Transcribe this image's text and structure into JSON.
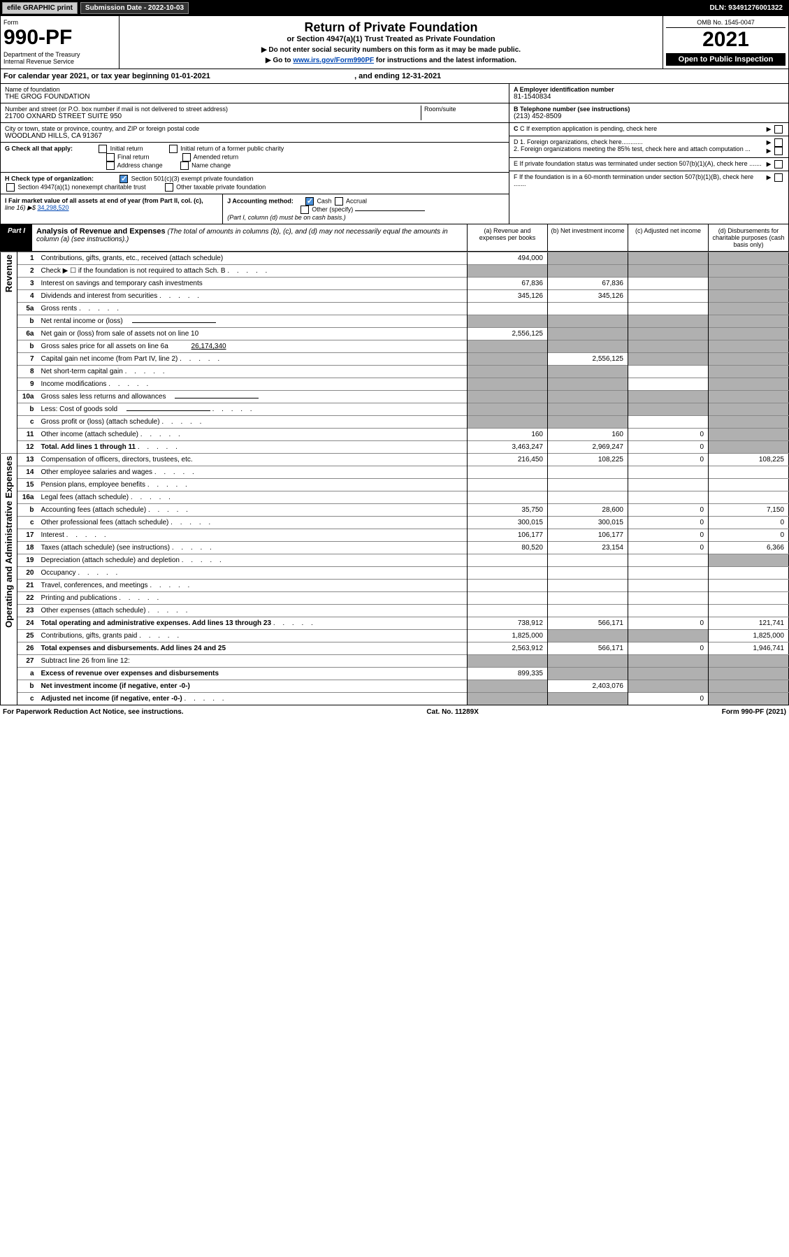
{
  "topbar": {
    "efile": "efile GRAPHIC print",
    "submission": "Submission Date - 2022-10-03",
    "dln": "DLN: 93491276001322"
  },
  "header": {
    "form": "Form",
    "form_num": "990-PF",
    "dept": "Department of the Treasury\nInternal Revenue Service",
    "title": "Return of Private Foundation",
    "subtitle": "or Section 4947(a)(1) Trust Treated as Private Foundation",
    "note1": "▶ Do not enter social security numbers on this form as it may be made public.",
    "note2": "▶ Go to ",
    "link": "www.irs.gov/Form990PF",
    "note2b": " for instructions and the latest information.",
    "omb": "OMB No. 1545-0047",
    "year": "2021",
    "open": "Open to Public Inspection"
  },
  "calyear": {
    "text1": "For calendar year 2021, or tax year beginning ",
    "begin": "01-01-2021",
    "text2": " , and ending ",
    "end": "12-31-2021"
  },
  "info": {
    "name_label": "Name of foundation",
    "name": "THE GROG FOUNDATION",
    "addr_label": "Number and street (or P.O. box number if mail is not delivered to street address)",
    "addr": "21700 OXNARD STREET SUITE 950",
    "room_label": "Room/suite",
    "city_label": "City or town, state or province, country, and ZIP or foreign postal code",
    "city": "WOODLAND HILLS, CA  91367",
    "ein_label": "A Employer identification number",
    "ein": "81-1540834",
    "phone_label": "B Telephone number (see instructions)",
    "phone": "(213) 452-8509",
    "c_label": "C If exemption application is pending, check here",
    "d1": "D 1. Foreign organizations, check here............",
    "d2": "2. Foreign organizations meeting the 85% test, check here and attach computation ...",
    "e_label": "E If private foundation status was terminated under section 507(b)(1)(A), check here .......",
    "f_label": "F If the foundation is in a 60-month termination under section 507(b)(1)(B), check here ......."
  },
  "checks": {
    "g_label": "G Check all that apply:",
    "initial": "Initial return",
    "initial_former": "Initial return of a former public charity",
    "final": "Final return",
    "amended": "Amended return",
    "address": "Address change",
    "name_change": "Name change",
    "h_label": "H Check type of organization:",
    "h1": "Section 501(c)(3) exempt private foundation",
    "h2": "Section 4947(a)(1) nonexempt charitable trust",
    "h3": "Other taxable private foundation",
    "i_label": "I Fair market value of all assets at end of year (from Part II, col. (c),",
    "i_line": "line 16) ▶$ ",
    "i_val": "34,298,520",
    "j_label": "J Accounting method:",
    "cash": "Cash",
    "accrual": "Accrual",
    "other": "Other (specify)",
    "j_note": "(Part I, column (d) must be on cash basis.)"
  },
  "part1": {
    "tab": "Part I",
    "title": "Analysis of Revenue and Expenses",
    "note": "(The total of amounts in columns (b), (c), and (d) may not necessarily equal the amounts in column (a) (see instructions).)",
    "col_a": "(a) Revenue and expenses per books",
    "col_b": "(b) Net investment income",
    "col_c": "(c) Adjusted net income",
    "col_d": "(d) Disbursements for charitable purposes (cash basis only)"
  },
  "sidelabels": {
    "revenue": "Revenue",
    "expenses": "Operating and Administrative Expenses"
  },
  "rows": [
    {
      "n": "1",
      "d": "Contributions, gifts, grants, etc., received (attach schedule)",
      "a": "494,000",
      "bg": true,
      "cg": true,
      "dg": true
    },
    {
      "n": "2",
      "d": "Check ▶ ☐ if the foundation is not required to attach Sch. B",
      "ag": true,
      "bg": true,
      "cg": true,
      "dg": true,
      "dots": true
    },
    {
      "n": "3",
      "d": "Interest on savings and temporary cash investments",
      "a": "67,836",
      "b": "67,836",
      "dg": true
    },
    {
      "n": "4",
      "d": "Dividends and interest from securities",
      "a": "345,126",
      "b": "345,126",
      "dg": true,
      "dots": true
    },
    {
      "n": "5a",
      "d": "Gross rents",
      "dg": true,
      "dots": true
    },
    {
      "n": "b",
      "d": "Net rental income or (loss)",
      "ag": true,
      "bg": true,
      "cg": true,
      "dg": true,
      "line": true
    },
    {
      "n": "6a",
      "d": "Net gain or (loss) from sale of assets not on line 10",
      "a": "2,556,125",
      "bg": true,
      "cg": true,
      "dg": true
    },
    {
      "n": "b",
      "d": "Gross sales price for all assets on line 6a",
      "sv": "26,174,340",
      "ag": true,
      "bg": true,
      "cg": true,
      "dg": true,
      "line": true
    },
    {
      "n": "7",
      "d": "Capital gain net income (from Part IV, line 2)",
      "ag": true,
      "b": "2,556,125",
      "cg": true,
      "dg": true,
      "dots": true
    },
    {
      "n": "8",
      "d": "Net short-term capital gain",
      "ag": true,
      "bg": true,
      "dg": true,
      "dots": true
    },
    {
      "n": "9",
      "d": "Income modifications",
      "ag": true,
      "bg": true,
      "dg": true,
      "dots": true
    },
    {
      "n": "10a",
      "d": "Gross sales less returns and allowances",
      "ag": true,
      "bg": true,
      "cg": true,
      "dg": true,
      "line": true
    },
    {
      "n": "b",
      "d": "Less: Cost of goods sold",
      "ag": true,
      "bg": true,
      "cg": true,
      "dg": true,
      "dots": true,
      "line": true
    },
    {
      "n": "c",
      "d": "Gross profit or (loss) (attach schedule)",
      "ag": true,
      "bg": true,
      "dg": true,
      "dots": true
    },
    {
      "n": "11",
      "d": "Other income (attach schedule)",
      "a": "160",
      "b": "160",
      "c": "0",
      "dg": true,
      "dots": true
    },
    {
      "n": "12",
      "d": "Total. Add lines 1 through 11",
      "a": "3,463,247",
      "b": "2,969,247",
      "c": "0",
      "dg": true,
      "bold": true,
      "dots": true
    },
    {
      "n": "13",
      "d": "Compensation of officers, directors, trustees, etc.",
      "a": "216,450",
      "b": "108,225",
      "c": "0",
      "dv": "108,225"
    },
    {
      "n": "14",
      "d": "Other employee salaries and wages",
      "dots": true
    },
    {
      "n": "15",
      "d": "Pension plans, employee benefits",
      "dots": true
    },
    {
      "n": "16a",
      "d": "Legal fees (attach schedule)",
      "dots": true
    },
    {
      "n": "b",
      "d": "Accounting fees (attach schedule)",
      "a": "35,750",
      "b": "28,600",
      "c": "0",
      "dv": "7,150",
      "dots": true
    },
    {
      "n": "c",
      "d": "Other professional fees (attach schedule)",
      "a": "300,015",
      "b": "300,015",
      "c": "0",
      "dv": "0",
      "dots": true
    },
    {
      "n": "17",
      "d": "Interest",
      "a": "106,177",
      "b": "106,177",
      "c": "0",
      "dv": "0",
      "dots": true
    },
    {
      "n": "18",
      "d": "Taxes (attach schedule) (see instructions)",
      "a": "80,520",
      "b": "23,154",
      "c": "0",
      "dv": "6,366",
      "dots": true
    },
    {
      "n": "19",
      "d": "Depreciation (attach schedule) and depletion",
      "dg": true,
      "dots": true
    },
    {
      "n": "20",
      "d": "Occupancy",
      "dots": true
    },
    {
      "n": "21",
      "d": "Travel, conferences, and meetings",
      "dots": true
    },
    {
      "n": "22",
      "d": "Printing and publications",
      "dots": true
    },
    {
      "n": "23",
      "d": "Other expenses (attach schedule)",
      "dots": true
    },
    {
      "n": "24",
      "d": "Total operating and administrative expenses. Add lines 13 through 23",
      "a": "738,912",
      "b": "566,171",
      "c": "0",
      "dv": "121,741",
      "bold": true,
      "dots": true
    },
    {
      "n": "25",
      "d": "Contributions, gifts, grants paid",
      "a": "1,825,000",
      "bg": true,
      "cg": true,
      "dv": "1,825,000",
      "dots": true
    },
    {
      "n": "26",
      "d": "Total expenses and disbursements. Add lines 24 and 25",
      "a": "2,563,912",
      "b": "566,171",
      "c": "0",
      "dv": "1,946,741",
      "bold": true
    },
    {
      "n": "27",
      "d": "Subtract line 26 from line 12:",
      "ag": true,
      "bg": true,
      "cg": true,
      "dg": true
    },
    {
      "n": "a",
      "d": "Excess of revenue over expenses and disbursements",
      "a": "899,335",
      "bg": true,
      "cg": true,
      "dg": true,
      "bold": true
    },
    {
      "n": "b",
      "d": "Net investment income (if negative, enter -0-)",
      "ag": true,
      "b": "2,403,076",
      "cg": true,
      "dg": true,
      "bold": true
    },
    {
      "n": "c",
      "d": "Adjusted net income (if negative, enter -0-)",
      "ag": true,
      "bg": true,
      "c": "0",
      "dg": true,
      "bold": true,
      "dots": true
    }
  ],
  "footer": {
    "left": "For Paperwork Reduction Act Notice, see instructions.",
    "center": "Cat. No. 11289X",
    "right": "Form 990-PF (2021)"
  }
}
